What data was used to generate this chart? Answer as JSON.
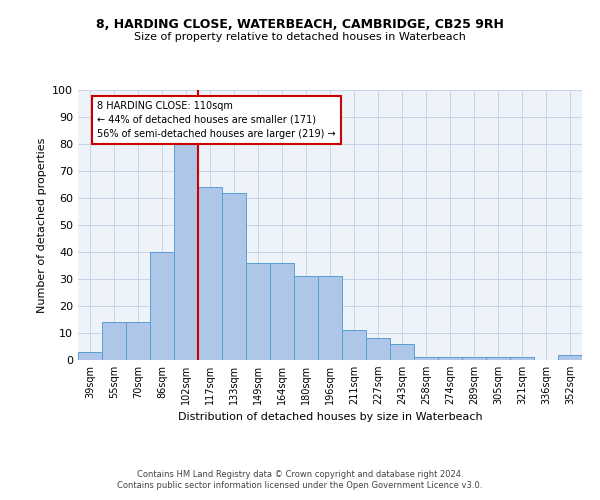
{
  "title1": "8, HARDING CLOSE, WATERBEACH, CAMBRIDGE, CB25 9RH",
  "title2": "Size of property relative to detached houses in Waterbeach",
  "xlabel": "Distribution of detached houses by size in Waterbeach",
  "ylabel": "Number of detached properties",
  "categories": [
    "39sqm",
    "55sqm",
    "70sqm",
    "86sqm",
    "102sqm",
    "117sqm",
    "133sqm",
    "149sqm",
    "164sqm",
    "180sqm",
    "196sqm",
    "211sqm",
    "227sqm",
    "243sqm",
    "258sqm",
    "274sqm",
    "289sqm",
    "305sqm",
    "321sqm",
    "336sqm",
    "352sqm"
  ],
  "values": [
    3,
    14,
    14,
    40,
    81,
    64,
    62,
    36,
    36,
    31,
    31,
    11,
    8,
    6,
    1,
    1,
    1,
    1,
    1,
    0,
    2
  ],
  "bar_color": "#aec6e8",
  "bar_edge_color": "#5a9fd4",
  "vline_position": 4.5,
  "vline_color": "#cc0000",
  "annotation_text": "8 HARDING CLOSE: 110sqm\n← 44% of detached houses are smaller (171)\n56% of semi-detached houses are larger (219) →",
  "annotation_box_color": "#ffffff",
  "annotation_box_edge_color": "#cc0000",
  "ylim": [
    0,
    100
  ],
  "yticks": [
    0,
    10,
    20,
    30,
    40,
    50,
    60,
    70,
    80,
    90,
    100
  ],
  "footer1": "Contains HM Land Registry data © Crown copyright and database right 2024.",
  "footer2": "Contains public sector information licensed under the Open Government Licence v3.0.",
  "bg_color": "#eef2f9",
  "grid_color": "#c8d4e8"
}
